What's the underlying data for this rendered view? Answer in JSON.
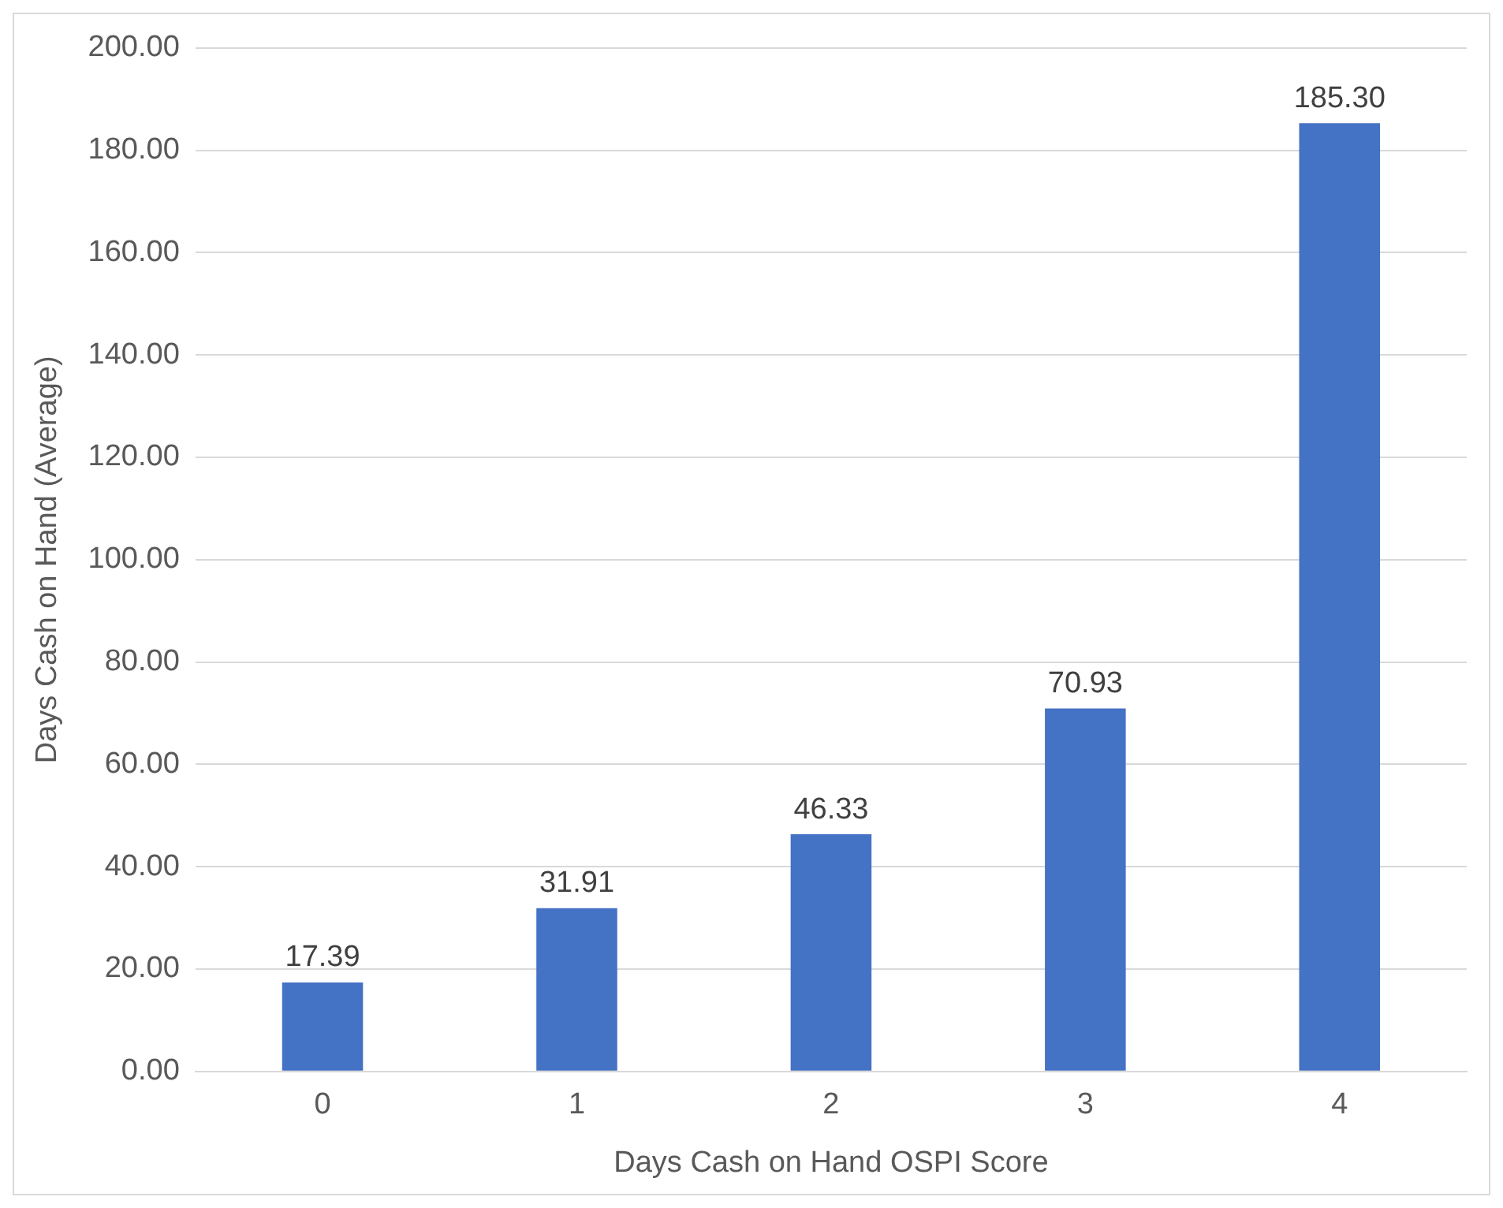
{
  "chart_data": {
    "type": "bar",
    "xlabel": "Days Cash on Hand OSPI Score",
    "ylabel": "Days Cash on Hand (Average)",
    "categories": [
      "0",
      "1",
      "2",
      "3",
      "4"
    ],
    "values": [
      17.39,
      31.91,
      46.33,
      70.93,
      185.3
    ],
    "value_labels": [
      "17.39",
      "31.91",
      "46.33",
      "70.93",
      "185.30"
    ],
    "color": "#4472c4",
    "ylim": [
      0,
      200
    ],
    "yticks": [
      {
        "value": 0,
        "label": "0.00"
      },
      {
        "value": 20,
        "label": "20.00"
      },
      {
        "value": 40,
        "label": "40.00"
      },
      {
        "value": 60,
        "label": "60.00"
      },
      {
        "value": 80,
        "label": "80.00"
      },
      {
        "value": 100,
        "label": "100.00"
      },
      {
        "value": 120,
        "label": "120.00"
      },
      {
        "value": 140,
        "label": "140.00"
      },
      {
        "value": 160,
        "label": "160.00"
      },
      {
        "value": 180,
        "label": "180.00"
      },
      {
        "value": 200,
        "label": "200.00"
      }
    ],
    "grid": "y"
  }
}
